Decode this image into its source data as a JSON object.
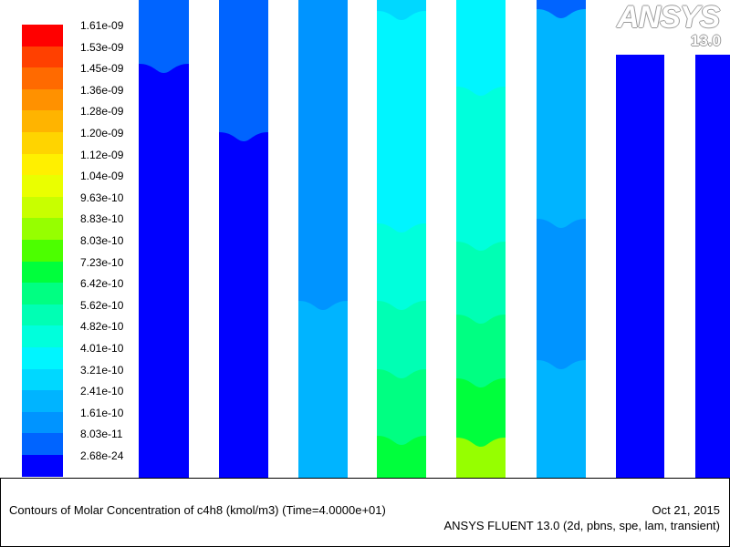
{
  "legend": {
    "levels": [
      {
        "label": "1.61e-09",
        "color": "#ff0000"
      },
      {
        "label": "1.53e-09",
        "color": "#ff4000"
      },
      {
        "label": "1.45e-09",
        "color": "#ff6a00"
      },
      {
        "label": "1.36e-09",
        "color": "#ff9100"
      },
      {
        "label": "1.28e-09",
        "color": "#ffb400"
      },
      {
        "label": "1.20e-09",
        "color": "#ffd400"
      },
      {
        "label": "1.12e-09",
        "color": "#fff000"
      },
      {
        "label": "1.04e-09",
        "color": "#eaff00"
      },
      {
        "label": "9.63e-10",
        "color": "#c8ff00"
      },
      {
        "label": "8.83e-10",
        "color": "#96ff00"
      },
      {
        "label": "8.03e-10",
        "color": "#4cff00"
      },
      {
        "label": "7.23e-10",
        "color": "#00ff3c"
      },
      {
        "label": "6.42e-10",
        "color": "#00ff82"
      },
      {
        "label": "5.62e-10",
        "color": "#00ffb4"
      },
      {
        "label": "4.82e-10",
        "color": "#00ffdc"
      },
      {
        "label": "4.01e-10",
        "color": "#00f5ff"
      },
      {
        "label": "3.21e-10",
        "color": "#00d8ff"
      },
      {
        "label": "2.41e-10",
        "color": "#00b4ff"
      },
      {
        "label": "1.61e-10",
        "color": "#0094ff"
      },
      {
        "label": "8.03e-11",
        "color": "#0064ff"
      },
      {
        "label": "2.68e-24",
        "color": "#0000ff"
      }
    ]
  },
  "logo": {
    "brand": "ANSYS",
    "version": "13.0"
  },
  "caption": {
    "title": "Contours of Molar Concentration of c4h8 (kmol/m3)  (Time=4.0000e+01)",
    "date": "Oct 21, 2015",
    "solver": "ANSYS FLUENT 13.0 (2d, pbns, spe, lam, transient)"
  },
  "columns": [
    {
      "bands": [
        {
          "from": 0,
          "color": "#0064ff"
        },
        {
          "from": 70,
          "color": "#0000ff"
        }
      ]
    },
    {
      "bands": [
        {
          "from": 0,
          "color": "#0064ff"
        },
        {
          "from": 145,
          "color": "#0000ff"
        }
      ]
    },
    {
      "bands": [
        {
          "from": 0,
          "color": "#0094ff"
        },
        {
          "from": 330,
          "color": "#00b4ff"
        }
      ]
    },
    {
      "bands": [
        {
          "from": 0,
          "color": "#00d8ff"
        },
        {
          "from": 12,
          "color": "#00f5ff"
        },
        {
          "from": 245,
          "color": "#00ffdc"
        },
        {
          "from": 330,
          "color": "#00ffb4"
        },
        {
          "from": 405,
          "color": "#00ff82"
        },
        {
          "from": 478,
          "color": "#00ff3c"
        }
      ]
    },
    {
      "bands": [
        {
          "from": 0,
          "color": "#00f5ff"
        },
        {
          "from": 95,
          "color": "#00ffdc"
        },
        {
          "from": 265,
          "color": "#00ffb4"
        },
        {
          "from": 345,
          "color": "#00ff82"
        },
        {
          "from": 415,
          "color": "#00ff3c"
        },
        {
          "from": 480,
          "color": "#96ff00"
        }
      ]
    },
    {
      "bands": [
        {
          "from": 0,
          "color": "#0064ff"
        },
        {
          "from": 10,
          "color": "#00b4ff"
        },
        {
          "from": 240,
          "color": "#0094ff"
        },
        {
          "from": 395,
          "color": "#00b4ff"
        }
      ]
    },
    {
      "top": 60,
      "bands": [
        {
          "from": 60,
          "color": "#0000ff"
        }
      ]
    },
    {
      "top": 60,
      "bands": [
        {
          "from": 60,
          "color": "#0000ff"
        }
      ]
    }
  ]
}
